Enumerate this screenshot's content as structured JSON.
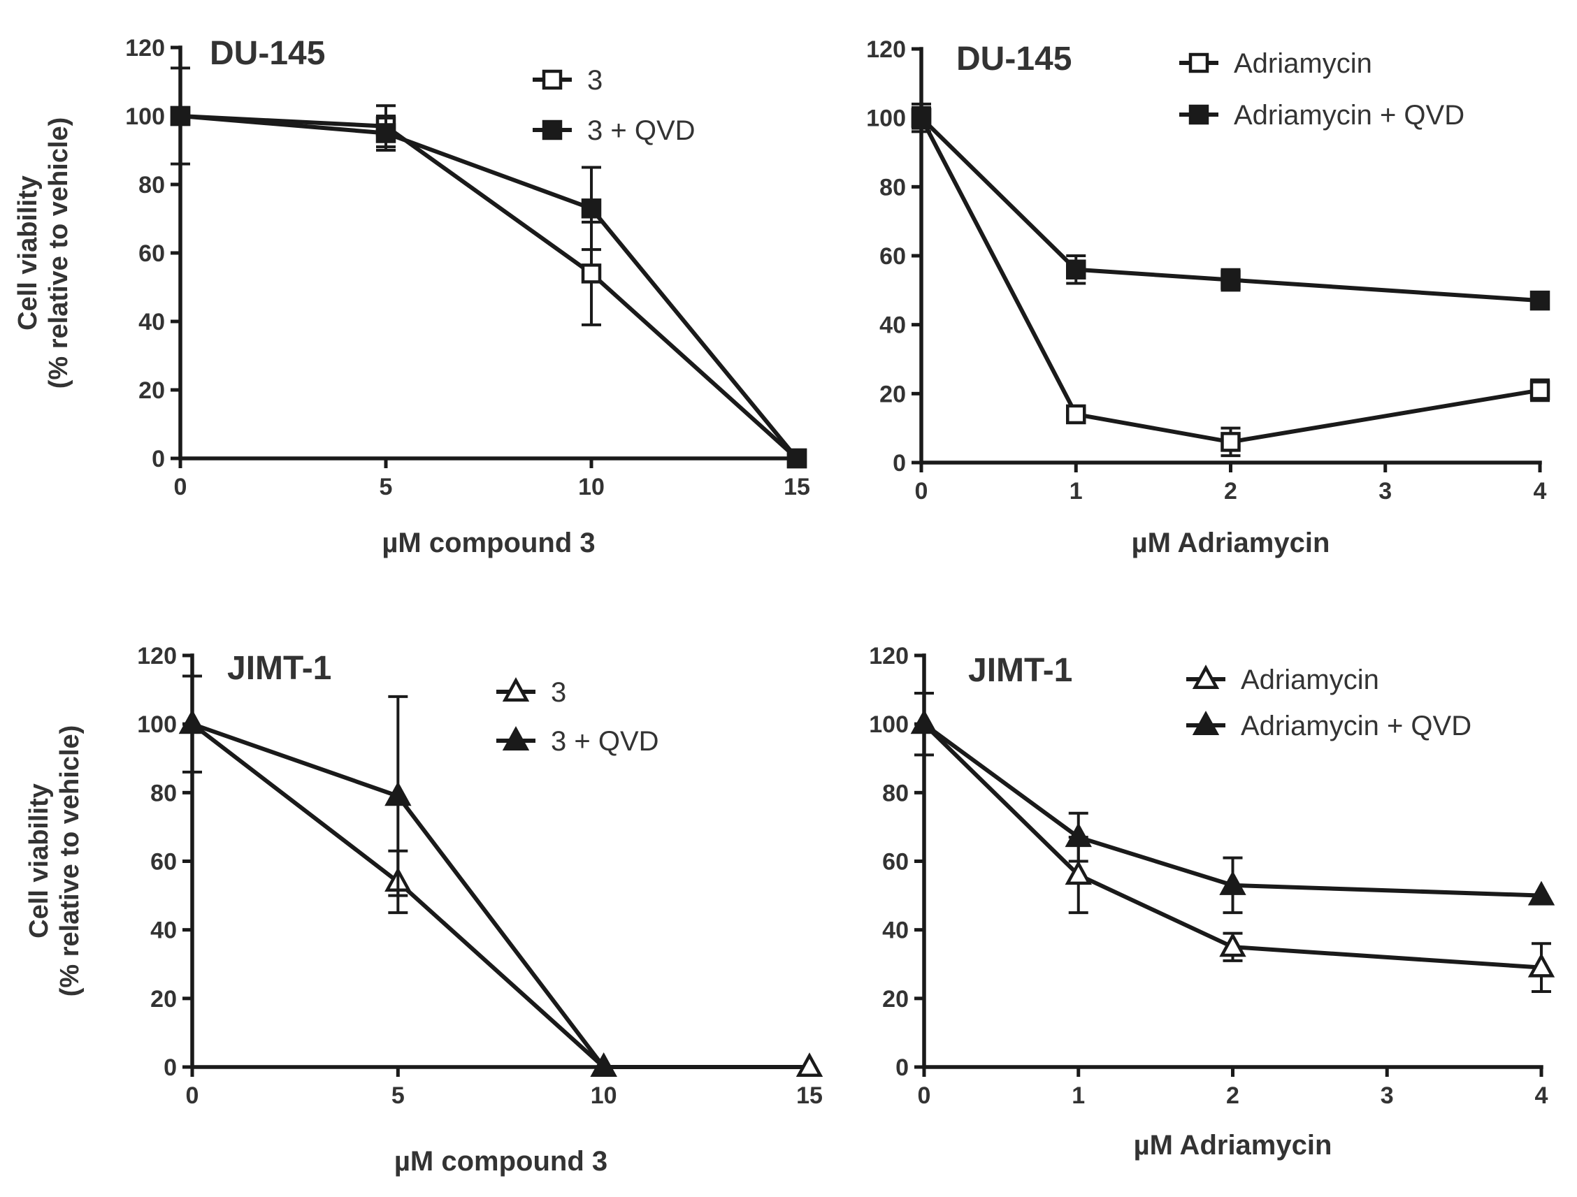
{
  "chart_data": [
    {
      "type": "line",
      "title": "DU-145",
      "xlabel": "µM compound 3",
      "ylabel": [
        "Cell viability",
        "(% relative to vehicle)"
      ],
      "x_ticks": [
        0,
        5,
        10,
        15
      ],
      "y_ticks": [
        0,
        20,
        40,
        60,
        80,
        100,
        120
      ],
      "xlim": [
        0,
        15
      ],
      "ylim": [
        0,
        120
      ],
      "series": [
        {
          "name": "3",
          "marker": "square",
          "filled": false,
          "x": [
            0,
            5,
            10,
            15
          ],
          "y": [
            100,
            97,
            54,
            0
          ],
          "err": [
            14,
            6,
            15,
            0
          ]
        },
        {
          "name": "3 + QVD",
          "marker": "square",
          "filled": true,
          "x": [
            0,
            5,
            10,
            15
          ],
          "y": [
            100,
            95,
            73,
            0
          ],
          "err": [
            0,
            5,
            12,
            0
          ]
        }
      ]
    },
    {
      "type": "line",
      "title": "DU-145",
      "xlabel": "µM Adriamycin",
      "ylabel": [
        "",
        ""
      ],
      "x_ticks": [
        0,
        1,
        2,
        3,
        4
      ],
      "y_ticks": [
        0,
        20,
        40,
        60,
        80,
        100,
        120
      ],
      "xlim": [
        0,
        4
      ],
      "ylim": [
        0,
        120
      ],
      "series": [
        {
          "name": "Adriamycin",
          "marker": "square",
          "filled": false,
          "x": [
            0,
            1,
            2,
            4
          ],
          "y": [
            100,
            14,
            6,
            21
          ],
          "err": [
            4,
            2,
            4,
            3
          ]
        },
        {
          "name": "Adriamycin + QVD",
          "marker": "square",
          "filled": true,
          "x": [
            0,
            1,
            2,
            4
          ],
          "y": [
            100,
            56,
            53,
            47
          ],
          "err": [
            3,
            4,
            3,
            2
          ]
        }
      ]
    },
    {
      "type": "line",
      "title": "JIMT-1",
      "xlabel": "µM compound 3",
      "ylabel": [
        "Cell viability",
        "(% relative to vehicle)"
      ],
      "x_ticks": [
        0,
        5,
        10,
        15
      ],
      "y_ticks": [
        0,
        20,
        40,
        60,
        80,
        100,
        120
      ],
      "xlim": [
        0,
        15
      ],
      "ylim": [
        0,
        120
      ],
      "series": [
        {
          "name": "3",
          "marker": "triangle",
          "filled": false,
          "x": [
            0,
            5,
            10,
            15
          ],
          "y": [
            100,
            54,
            0,
            0
          ],
          "err": [
            14,
            9,
            0,
            0
          ]
        },
        {
          "name": "3 + QVD",
          "marker": "triangle",
          "filled": true,
          "x": [
            0,
            5,
            10
          ],
          "y": [
            100,
            79,
            0
          ],
          "err": [
            0,
            29,
            0
          ]
        }
      ]
    },
    {
      "type": "line",
      "title": "JIMT-1",
      "xlabel": "µM Adriamycin",
      "ylabel": [
        "",
        ""
      ],
      "x_ticks": [
        0,
        1,
        2,
        3,
        4
      ],
      "y_ticks": [
        0,
        20,
        40,
        60,
        80,
        100,
        120
      ],
      "xlim": [
        0,
        4
      ],
      "ylim": [
        0,
        120
      ],
      "series": [
        {
          "name": "Adriamycin",
          "marker": "triangle",
          "filled": false,
          "x": [
            0,
            1,
            2,
            4
          ],
          "y": [
            100,
            56,
            35,
            29
          ],
          "err": [
            9,
            11,
            4,
            7
          ]
        },
        {
          "name": "Adriamycin + QVD",
          "marker": "triangle",
          "filled": true,
          "x": [
            0,
            1,
            2,
            4
          ],
          "y": [
            100,
            67,
            53,
            50
          ],
          "err": [
            0,
            7,
            8,
            0
          ]
        }
      ]
    }
  ]
}
